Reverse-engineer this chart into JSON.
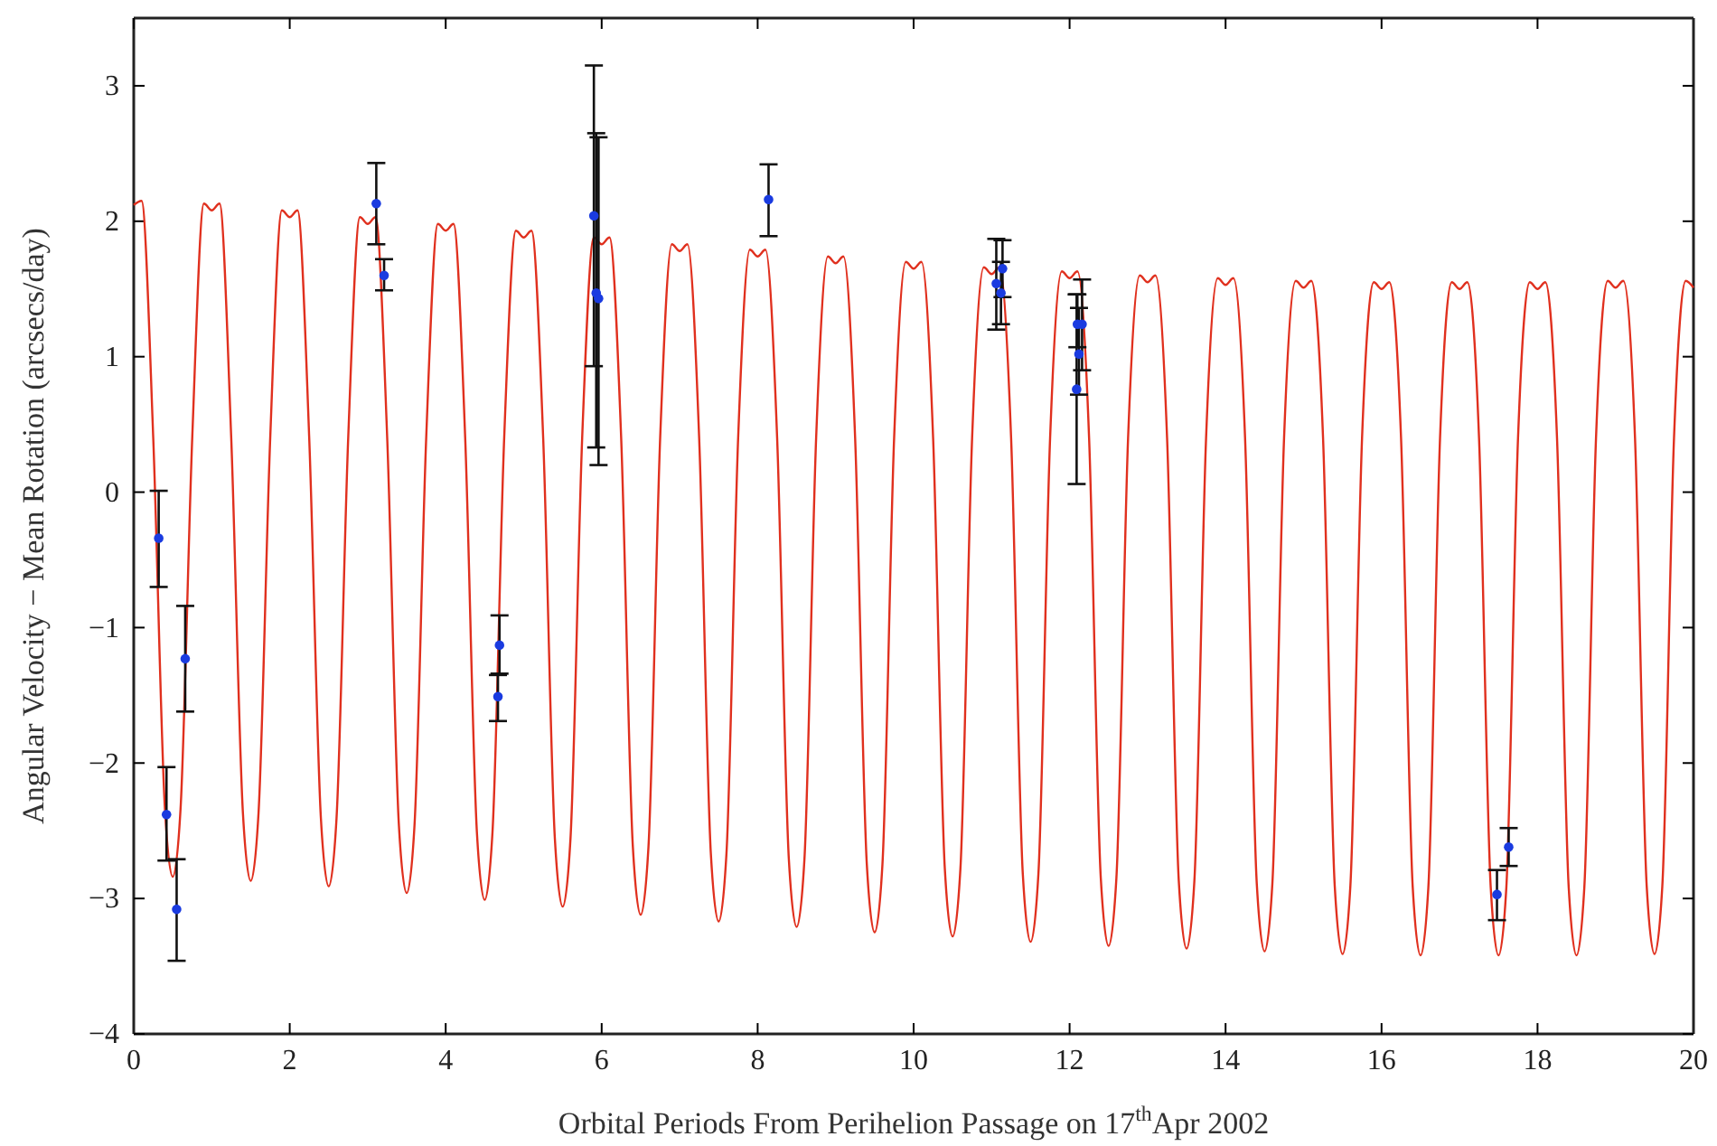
{
  "chart_data": {
    "type": "line",
    "xlabel": "Orbital Periods From Perihelion Passage on 17$^{th}$Apr 2002",
    "ylabel": "Angular Velocity − Mean Rotation (arcsecs/day)",
    "xlim": [
      0,
      20
    ],
    "ylim": [
      -4,
      3.5
    ],
    "xticks": [
      0,
      2,
      4,
      6,
      8,
      10,
      12,
      14,
      16,
      18,
      20
    ],
    "yticks": [
      -4,
      -3,
      -2,
      -1,
      0,
      1,
      2,
      3
    ],
    "series": [
      {
        "type": "line",
        "color": "#e0301e",
        "line_style": "solid",
        "x": [
          0,
          0.1,
          0.25,
          0.4,
          0.5,
          0.6,
          0.75,
          0.9,
          1,
          1.1,
          1.25,
          1.4,
          1.5,
          1.6,
          1.75,
          1.9,
          2,
          2.1,
          2.25,
          2.4,
          2.5,
          2.6,
          2.75,
          2.9,
          3,
          3.1,
          3.25,
          3.4,
          3.5,
          3.6,
          3.75,
          3.9,
          4,
          4.1,
          4.25,
          4.4,
          4.5,
          4.6,
          4.75,
          4.9,
          5,
          5.1,
          5.25,
          5.4,
          5.5,
          5.6,
          5.75,
          5.9,
          6,
          6.1,
          6.25,
          6.4,
          6.5,
          6.6,
          6.75,
          6.9,
          7,
          7.1,
          7.25,
          7.4,
          7.5,
          7.6,
          7.75,
          7.9,
          8,
          8.1,
          8.25,
          8.4,
          8.5,
          8.6,
          8.75,
          8.9,
          9,
          9.1,
          9.25,
          9.4,
          9.5,
          9.6,
          9.75,
          9.9,
          10,
          10.1,
          10.25,
          10.4,
          10.5,
          10.6,
          10.75,
          10.9,
          11,
          11.1,
          11.25,
          11.4,
          11.5,
          11.6,
          11.75,
          11.9,
          12,
          12.1,
          12.25,
          12.4,
          12.5,
          12.6,
          12.75,
          12.9,
          13,
          13.1,
          13.25,
          13.4,
          13.5,
          13.6,
          13.75,
          13.9,
          14,
          14.1,
          14.25,
          14.4,
          14.5,
          14.6,
          14.75,
          14.9,
          15,
          15.1,
          15.25,
          15.4,
          15.5,
          15.6,
          15.75,
          15.9,
          16,
          16.1,
          16.25,
          16.4,
          16.5,
          16.6,
          16.75,
          16.9,
          17,
          17.1,
          17.25,
          17.4,
          17.5,
          17.6,
          17.75,
          17.9,
          18,
          18.1,
          18.25,
          18.4,
          18.5,
          18.6,
          18.75,
          18.9,
          19,
          19.1,
          19.25,
          19.4,
          19.5,
          19.6,
          19.75,
          19.9,
          20
        ],
        "values": [
          2.12,
          2.15,
          0.4,
          -2.34,
          -2.84,
          -2.34,
          0.4,
          2.13,
          2.08,
          2.13,
          0.4,
          -2.37,
          -2.87,
          -2.37,
          0.4,
          2.08,
          2.03,
          2.08,
          0.4,
          -2.41,
          -2.91,
          -2.41,
          0.4,
          2.03,
          1.98,
          2.03,
          0.4,
          -2.46,
          -2.96,
          -2.46,
          0.4,
          1.98,
          1.93,
          1.98,
          0.4,
          -2.51,
          -3.01,
          -2.51,
          0.4,
          1.93,
          1.88,
          1.93,
          0.4,
          -2.56,
          -3.06,
          -2.56,
          0.4,
          1.88,
          1.83,
          1.88,
          0.4,
          -2.62,
          -3.12,
          -2.62,
          0.4,
          1.83,
          1.78,
          1.83,
          0.4,
          -2.67,
          -3.17,
          -2.67,
          0.4,
          1.79,
          1.74,
          1.79,
          0.4,
          -2.71,
          -3.21,
          -2.71,
          0.4,
          1.74,
          1.69,
          1.74,
          0.4,
          -2.75,
          -3.25,
          -2.75,
          0.4,
          1.7,
          1.65,
          1.7,
          0.4,
          -2.78,
          -3.28,
          -2.78,
          0.4,
          1.66,
          1.61,
          1.66,
          0.4,
          -2.82,
          -3.32,
          -2.82,
          0.4,
          1.63,
          1.58,
          1.63,
          0.4,
          -2.85,
          -3.35,
          -2.85,
          0.4,
          1.6,
          1.55,
          1.6,
          0.4,
          -2.87,
          -3.37,
          -2.87,
          0.4,
          1.58,
          1.53,
          1.58,
          0.4,
          -2.89,
          -3.39,
          -2.89,
          0.4,
          1.56,
          1.51,
          1.56,
          0.4,
          -2.91,
          -3.41,
          -2.91,
          0.4,
          1.55,
          1.5,
          1.55,
          0.4,
          -2.92,
          -3.42,
          -2.92,
          0.4,
          1.55,
          1.5,
          1.55,
          0.4,
          -2.92,
          -3.42,
          -2.92,
          0.4,
          1.55,
          1.5,
          1.55,
          0.4,
          -2.92,
          -3.42,
          -2.92,
          0.4,
          1.56,
          1.51,
          1.56,
          0.4,
          -2.91,
          -3.41,
          -2.91,
          0.4,
          1.56,
          1.51
        ]
      },
      {
        "type": "scatter",
        "color": "#1a3be0",
        "marker": "circle",
        "x": [
          0.32,
          0.66,
          0.42,
          0.55,
          3.11,
          3.21,
          4.69,
          4.67,
          5.9,
          5.93,
          5.96,
          8.14,
          11.14,
          11.06,
          11.12,
          12.16,
          12.1,
          12.12,
          12.09,
          17.63,
          17.48
        ],
        "values": [
          -0.34,
          -1.23,
          -2.38,
          -3.08,
          2.13,
          1.6,
          -1.13,
          -1.51,
          2.04,
          1.47,
          1.43,
          2.16,
          1.65,
          1.54,
          1.47,
          1.24,
          1.24,
          1.02,
          0.76,
          -2.62,
          -2.97
        ],
        "errors": [
          [
            -0.7,
            0.01
          ],
          [
            -1.62,
            -0.84
          ],
          [
            -2.72,
            -2.03
          ],
          [
            -3.46,
            -2.71
          ],
          [
            1.83,
            2.43
          ],
          [
            1.49,
            1.72
          ],
          [
            -1.34,
            -0.91
          ],
          [
            -1.69,
            -1.35
          ],
          [
            0.93,
            3.15
          ],
          [
            0.33,
            2.65
          ],
          [
            0.2,
            2.62
          ],
          [
            1.89,
            2.42
          ],
          [
            1.44,
            1.86
          ],
          [
            1.2,
            1.87
          ],
          [
            1.24,
            1.7
          ],
          [
            0.9,
            1.57
          ],
          [
            1.07,
            1.46
          ],
          [
            0.72,
            1.36
          ],
          [
            0.06,
            1.46
          ],
          [
            -2.76,
            -2.48
          ],
          [
            -3.16,
            -2.79
          ]
        ]
      }
    ]
  }
}
